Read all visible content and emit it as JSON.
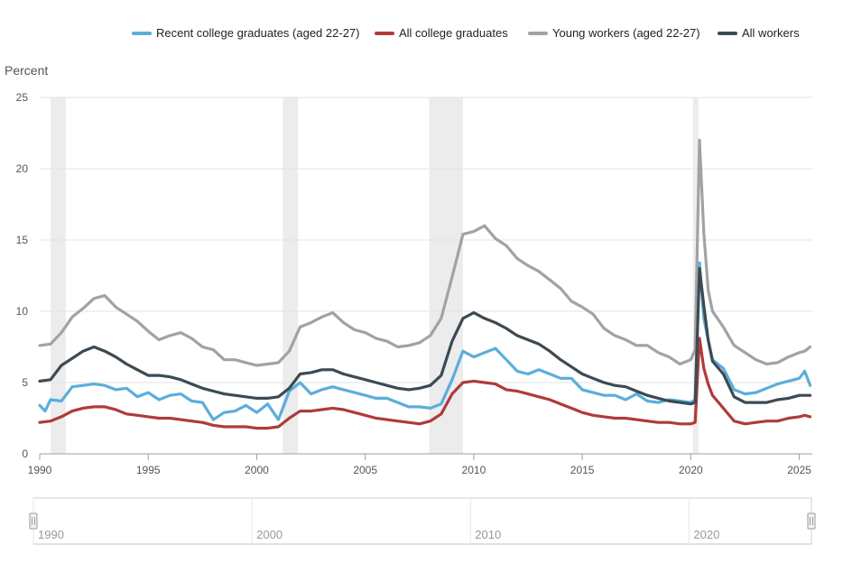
{
  "chart_data": {
    "type": "line",
    "ylabel": "Percent",
    "ylim": [
      0,
      25
    ],
    "yticks": [
      "0",
      "5",
      "10",
      "15",
      "20",
      "25"
    ],
    "xlim": [
      1990,
      2025.6
    ],
    "xticks": [
      "1990",
      "1995",
      "2000",
      "2005",
      "2010",
      "2015",
      "2020",
      "2025"
    ],
    "grid": "horizontal",
    "legend_position": "top",
    "recessions": [
      {
        "start": 1990.5,
        "end": 1991.2
      },
      {
        "start": 2001.2,
        "end": 2001.9
      },
      {
        "start": 2007.95,
        "end": 2009.5
      },
      {
        "start": 2020.1,
        "end": 2020.35
      }
    ],
    "series": [
      {
        "name": "Recent college graduates (aged 22-27)",
        "color": "#5aaedb",
        "x": [
          1990,
          1990.25,
          1990.5,
          1991,
          1991.5,
          1992,
          1992.5,
          1993,
          1993.5,
          1994,
          1994.5,
          1995,
          1995.5,
          1996,
          1996.5,
          1997,
          1997.5,
          1998,
          1998.5,
          1999,
          1999.5,
          2000,
          2000.5,
          2001,
          2001.5,
          2002,
          2002.5,
          2003,
          2003.5,
          2004,
          2004.5,
          2005,
          2005.5,
          2006,
          2006.5,
          2007,
          2007.5,
          2008,
          2008.5,
          2009,
          2009.5,
          2010,
          2010.5,
          2011,
          2011.5,
          2012,
          2012.5,
          2013,
          2013.5,
          2014,
          2014.5,
          2015,
          2015.5,
          2016,
          2016.5,
          2017,
          2017.5,
          2018,
          2018.5,
          2019,
          2019.5,
          2020,
          2020.2,
          2020.4,
          2020.6,
          2020.8,
          2021,
          2021.5,
          2022,
          2022.5,
          2023,
          2023.5,
          2024,
          2024.5,
          2025,
          2025.25,
          2025.5
        ],
        "values": [
          3.4,
          3.0,
          3.8,
          3.7,
          4.7,
          4.8,
          4.9,
          4.8,
          4.5,
          4.6,
          4.0,
          4.3,
          3.8,
          4.1,
          4.2,
          3.7,
          3.6,
          2.4,
          2.9,
          3.0,
          3.4,
          2.9,
          3.5,
          2.4,
          4.4,
          5.0,
          4.2,
          4.5,
          4.7,
          4.5,
          4.3,
          4.1,
          3.9,
          3.9,
          3.6,
          3.3,
          3.3,
          3.2,
          3.5,
          5.2,
          7.2,
          6.8,
          7.1,
          7.4,
          6.6,
          5.8,
          5.6,
          5.9,
          5.6,
          5.3,
          5.3,
          4.5,
          4.3,
          4.1,
          4.1,
          3.8,
          4.2,
          3.7,
          3.6,
          3.8,
          3.7,
          3.6,
          3.8,
          13.4,
          9.5,
          8.0,
          6.6,
          6.0,
          4.5,
          4.2,
          4.3,
          4.6,
          4.9,
          5.1,
          5.3,
          5.8,
          4.8
        ]
      },
      {
        "name": "All college graduates",
        "color": "#b03a3a",
        "x": [
          1990,
          1990.5,
          1991,
          1991.5,
          1992,
          1992.5,
          1993,
          1993.5,
          1994,
          1994.5,
          1995,
          1995.5,
          1996,
          1996.5,
          1997,
          1997.5,
          1998,
          1998.5,
          1999,
          1999.5,
          2000,
          2000.5,
          2001,
          2001.5,
          2002,
          2002.5,
          2003,
          2003.5,
          2004,
          2004.5,
          2005,
          2005.5,
          2006,
          2006.5,
          2007,
          2007.5,
          2008,
          2008.5,
          2009,
          2009.5,
          2010,
          2010.5,
          2011,
          2011.5,
          2012,
          2012.5,
          2013,
          2013.5,
          2014,
          2014.5,
          2015,
          2015.5,
          2016,
          2016.5,
          2017,
          2017.5,
          2018,
          2018.5,
          2019,
          2019.5,
          2020,
          2020.2,
          2020.4,
          2020.6,
          2020.8,
          2021,
          2021.5,
          2022,
          2022.5,
          2023,
          2023.5,
          2024,
          2024.5,
          2025,
          2025.25,
          2025.5
        ],
        "values": [
          2.2,
          2.3,
          2.6,
          3.0,
          3.2,
          3.3,
          3.3,
          3.1,
          2.8,
          2.7,
          2.6,
          2.5,
          2.5,
          2.4,
          2.3,
          2.2,
          2.0,
          1.9,
          1.9,
          1.9,
          1.8,
          1.8,
          1.9,
          2.5,
          3.0,
          3.0,
          3.1,
          3.2,
          3.1,
          2.9,
          2.7,
          2.5,
          2.4,
          2.3,
          2.2,
          2.1,
          2.3,
          2.8,
          4.2,
          5.0,
          5.1,
          5.0,
          4.9,
          4.5,
          4.4,
          4.2,
          4.0,
          3.8,
          3.5,
          3.2,
          2.9,
          2.7,
          2.6,
          2.5,
          2.5,
          2.4,
          2.3,
          2.2,
          2.2,
          2.1,
          2.1,
          2.2,
          8.1,
          6.0,
          4.9,
          4.1,
          3.2,
          2.3,
          2.1,
          2.2,
          2.3,
          2.3,
          2.5,
          2.6,
          2.7,
          2.6
        ]
      },
      {
        "name": "Young workers (aged 22-27)",
        "color": "#a1a2a6",
        "x": [
          1990,
          1990.5,
          1991,
          1991.5,
          1992,
          1992.5,
          1993,
          1993.5,
          1994,
          1994.5,
          1995,
          1995.5,
          1996,
          1996.5,
          1997,
          1997.5,
          1998,
          1998.5,
          1999,
          1999.5,
          2000,
          2000.5,
          2001,
          2001.5,
          2002,
          2002.5,
          2003,
          2003.5,
          2004,
          2004.5,
          2005,
          2005.5,
          2006,
          2006.5,
          2007,
          2007.5,
          2008,
          2008.5,
          2009,
          2009.5,
          2010,
          2010.5,
          2011,
          2011.5,
          2012,
          2012.5,
          2013,
          2013.5,
          2014,
          2014.5,
          2015,
          2015.5,
          2016,
          2016.5,
          2017,
          2017.5,
          2018,
          2018.5,
          2019,
          2019.5,
          2020,
          2020.2,
          2020.4,
          2020.6,
          2020.8,
          2021,
          2021.5,
          2022,
          2022.5,
          2023,
          2023.5,
          2024,
          2024.5,
          2025,
          2025.25,
          2025.5
        ],
        "values": [
          7.6,
          7.7,
          8.5,
          9.6,
          10.2,
          10.9,
          11.1,
          10.3,
          9.8,
          9.3,
          8.6,
          8.0,
          8.3,
          8.5,
          8.1,
          7.5,
          7.3,
          6.6,
          6.6,
          6.4,
          6.2,
          6.3,
          6.4,
          7.2,
          8.9,
          9.2,
          9.6,
          9.9,
          9.2,
          8.7,
          8.5,
          8.1,
          7.9,
          7.5,
          7.6,
          7.8,
          8.3,
          9.5,
          12.4,
          15.4,
          15.6,
          16.0,
          15.1,
          14.6,
          13.7,
          13.2,
          12.8,
          12.2,
          11.6,
          10.7,
          10.3,
          9.8,
          8.8,
          8.3,
          8.0,
          7.6,
          7.6,
          7.1,
          6.8,
          6.3,
          6.6,
          7.3,
          22.0,
          15.5,
          11.5,
          10.0,
          8.9,
          7.6,
          7.1,
          6.6,
          6.3,
          6.4,
          6.8,
          7.1,
          7.2,
          7.5
        ]
      },
      {
        "name": "All workers",
        "color": "#3d4a52",
        "x": [
          1990,
          1990.5,
          1991,
          1991.5,
          1992,
          1992.5,
          1993,
          1993.5,
          1994,
          1994.5,
          1995,
          1995.5,
          1996,
          1996.5,
          1997,
          1997.5,
          1998,
          1998.5,
          1999,
          1999.5,
          2000,
          2000.5,
          2001,
          2001.5,
          2002,
          2002.5,
          2003,
          2003.5,
          2004,
          2004.5,
          2005,
          2005.5,
          2006,
          2006.5,
          2007,
          2007.5,
          2008,
          2008.5,
          2009,
          2009.5,
          2010,
          2010.5,
          2011,
          2011.5,
          2012,
          2012.5,
          2013,
          2013.5,
          2014,
          2014.5,
          2015,
          2015.5,
          2016,
          2016.5,
          2017,
          2017.5,
          2018,
          2018.5,
          2019,
          2019.5,
          2020,
          2020.2,
          2020.4,
          2020.6,
          2020.8,
          2021,
          2021.5,
          2022,
          2022.5,
          2023,
          2023.5,
          2024,
          2024.5,
          2025,
          2025.25,
          2025.5
        ],
        "values": [
          5.1,
          5.2,
          6.2,
          6.7,
          7.2,
          7.5,
          7.2,
          6.8,
          6.3,
          5.9,
          5.5,
          5.5,
          5.4,
          5.2,
          4.9,
          4.6,
          4.4,
          4.2,
          4.1,
          4.0,
          3.9,
          3.9,
          4.0,
          4.6,
          5.6,
          5.7,
          5.9,
          5.9,
          5.6,
          5.4,
          5.2,
          5.0,
          4.8,
          4.6,
          4.5,
          4.6,
          4.8,
          5.5,
          7.9,
          9.5,
          9.9,
          9.5,
          9.2,
          8.8,
          8.3,
          8.0,
          7.7,
          7.2,
          6.6,
          6.1,
          5.6,
          5.3,
          5.0,
          4.8,
          4.7,
          4.4,
          4.1,
          3.9,
          3.7,
          3.6,
          3.5,
          3.6,
          13.0,
          10.4,
          8.0,
          6.5,
          5.6,
          4.0,
          3.6,
          3.6,
          3.6,
          3.8,
          3.9,
          4.1,
          4.1,
          4.1
        ]
      }
    ]
  },
  "navigator": {
    "labels": [
      "1990",
      "2000",
      "2010",
      "2020"
    ],
    "range": [
      1990,
      2025.6
    ],
    "start_handle": "left-handle",
    "end_handle": "right-handle"
  }
}
